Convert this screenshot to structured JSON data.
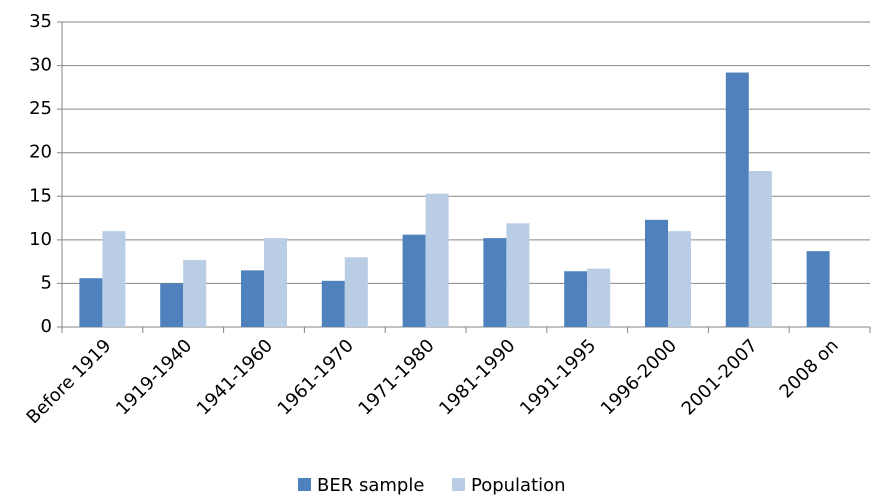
{
  "chart_data": {
    "type": "bar",
    "categories": [
      "Before 1919",
      "1919-1940",
      "1941-1960",
      "1961-1970",
      "1971-1980",
      "1981-1990",
      "1991-1995",
      "1996-2000",
      "2001-2007",
      "2008 on"
    ],
    "series": [
      {
        "name": "BER sample",
        "color": "#4f81bd",
        "values": [
          5.6,
          5.0,
          6.5,
          5.3,
          10.6,
          10.2,
          6.4,
          12.3,
          29.2,
          8.7
        ]
      },
      {
        "name": "Population",
        "color": "#b9cde5",
        "values": [
          11.0,
          7.7,
          10.2,
          8.0,
          15.3,
          11.9,
          6.7,
          11.0,
          17.9,
          null
        ]
      }
    ],
    "ylim": [
      0,
      35
    ],
    "yticks": [
      0,
      5,
      10,
      15,
      20,
      25,
      30,
      35
    ],
    "grid": true,
    "legend": "bottom"
  }
}
